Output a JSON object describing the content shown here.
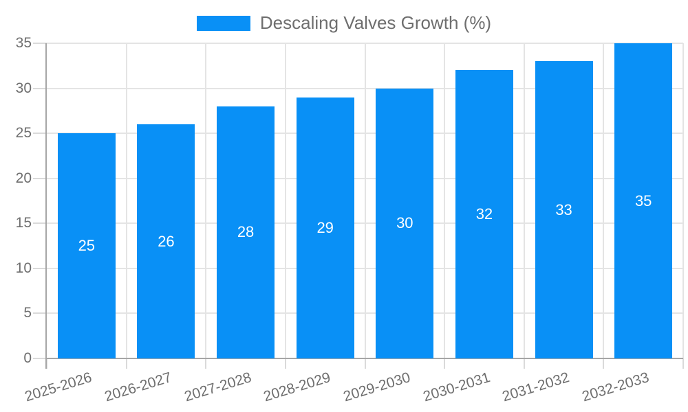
{
  "chart_data": {
    "type": "bar",
    "title": "Descaling Valves Growth (%)",
    "categories": [
      "2025-2026",
      "2026-2027",
      "2027-2028",
      "2028-2029",
      "2029-2030",
      "2030-2031",
      "2031-2032",
      "2032-2033"
    ],
    "values": [
      25,
      26,
      28,
      29,
      30,
      32,
      33,
      35
    ],
    "xlabel": "",
    "ylabel": "",
    "ylim": [
      0,
      35
    ],
    "yticks": [
      0,
      5,
      10,
      15,
      20,
      25,
      30,
      35
    ],
    "grid": true,
    "legend_position": "top-center",
    "value_labels": "inside-center-white",
    "colors": {
      "bar": "#0990f6",
      "bar_label": "#ffffff",
      "grid": "#e4e4e4",
      "axis": "#a6a6a6",
      "tick_mark": "#dadada",
      "tick_text": "#6e6e6e",
      "legend_text": "#6e6e6e",
      "background": "#ffffff"
    }
  }
}
